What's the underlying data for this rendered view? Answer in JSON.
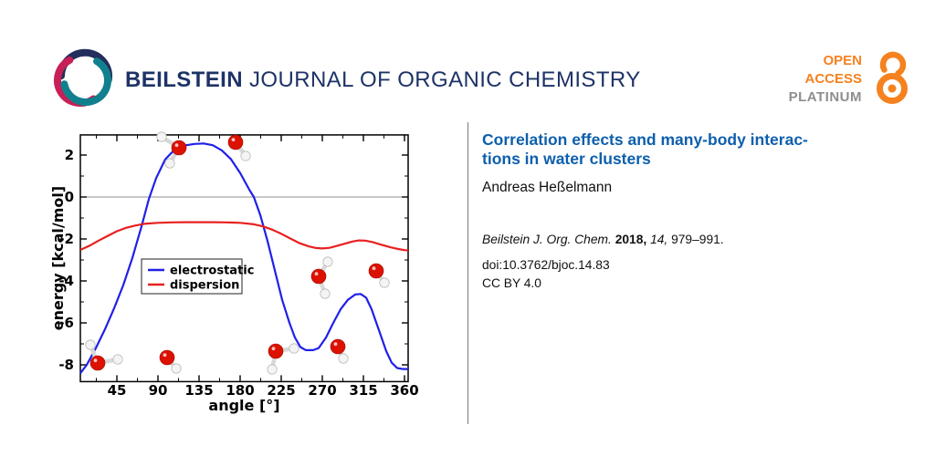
{
  "header": {
    "journal_bold": "BEILSTEIN",
    "journal_rest": " JOURNAL OF ORGANIC CHEMISTRY",
    "open_access": {
      "line1": "OPEN",
      "line2": "ACCESS",
      "line3": "PLATINUM"
    }
  },
  "article": {
    "title_line1": "Correlation effects and many-body interac-",
    "title_line2": "tions in water clusters",
    "author": "Andreas Heßelmann",
    "citation": {
      "journal": "Beilstein J. Org. Chem.",
      "year": " 2018, ",
      "volume": "14, ",
      "pages": "979–991."
    },
    "doi": "doi:10.3762/bjoc.14.83",
    "license": "CC BY 4.0"
  },
  "colors": {
    "journal_navy": "#1e3366",
    "title_blue": "#0d5fad",
    "oa_orange": "#f5821f",
    "oa_gray": "#8e8e8e",
    "logo_navy": "#232e5c",
    "logo_teal": "#11808e",
    "logo_crimson": "#c62057",
    "electrostatic": "#2020e8",
    "dispersion": "#e82020",
    "oxygen": "#dd1100",
    "hydrogen": "#f4f4f4"
  },
  "chart_data": {
    "type": "line",
    "xlabel": "angle [°]",
    "ylabel": "energy [kcal/mol]",
    "xlim": [
      5,
      364
    ],
    "ylim": [
      -8.8,
      2.96
    ],
    "x_ticks": [
      45,
      90,
      135,
      180,
      225,
      270,
      315,
      360
    ],
    "x_minor_ticks": [
      22.5,
      67.5,
      112.5,
      157.5,
      202.5,
      247.5,
      292.5,
      337.5
    ],
    "y_ticks": [
      2,
      0,
      -2,
      -4,
      -6,
      -8
    ],
    "y_minor_ticks": [
      1,
      -1,
      -3,
      -5,
      -7
    ],
    "zero_line": 0,
    "legend": [
      {
        "label": "electrostatic",
        "color": "#2020e8"
      },
      {
        "label": "dispersion",
        "color": "#e82020"
      }
    ],
    "series": [
      {
        "name": "electrostatic",
        "color": "#2020e8",
        "points": [
          [
            5,
            -8.4
          ],
          [
            12,
            -8.0
          ],
          [
            22,
            -7.2
          ],
          [
            32,
            -6.3
          ],
          [
            42,
            -5.3
          ],
          [
            52,
            -4.2
          ],
          [
            62,
            -2.9
          ],
          [
            72,
            -1.4
          ],
          [
            80,
            -0.1
          ],
          [
            88,
            0.9
          ],
          [
            98,
            1.8
          ],
          [
            108,
            2.25
          ],
          [
            118,
            2.45
          ],
          [
            130,
            2.53
          ],
          [
            140,
            2.55
          ],
          [
            150,
            2.47
          ],
          [
            160,
            2.22
          ],
          [
            170,
            1.8
          ],
          [
            180,
            1.15
          ],
          [
            190,
            0.35
          ],
          [
            195,
            0.0
          ],
          [
            202,
            -0.85
          ],
          [
            210,
            -2.1
          ],
          [
            218,
            -3.5
          ],
          [
            226,
            -4.9
          ],
          [
            234,
            -6.0
          ],
          [
            240,
            -6.7
          ],
          [
            246,
            -7.15
          ],
          [
            252,
            -7.3
          ],
          [
            260,
            -7.3
          ],
          [
            266,
            -7.2
          ],
          [
            274,
            -6.7
          ],
          [
            282,
            -6.0
          ],
          [
            290,
            -5.35
          ],
          [
            298,
            -4.9
          ],
          [
            306,
            -4.65
          ],
          [
            312,
            -4.62
          ],
          [
            318,
            -4.8
          ],
          [
            324,
            -5.35
          ],
          [
            332,
            -6.35
          ],
          [
            340,
            -7.35
          ],
          [
            346,
            -7.9
          ],
          [
            352,
            -8.15
          ],
          [
            358,
            -8.2
          ],
          [
            364,
            -8.2
          ]
        ]
      },
      {
        "name": "dispersion",
        "color": "#e82020",
        "points": [
          [
            5,
            -2.52
          ],
          [
            15,
            -2.32
          ],
          [
            25,
            -2.08
          ],
          [
            35,
            -1.85
          ],
          [
            45,
            -1.63
          ],
          [
            55,
            -1.47
          ],
          [
            65,
            -1.36
          ],
          [
            75,
            -1.28
          ],
          [
            90,
            -1.23
          ],
          [
            105,
            -1.21
          ],
          [
            120,
            -1.2
          ],
          [
            135,
            -1.2
          ],
          [
            150,
            -1.2
          ],
          [
            165,
            -1.21
          ],
          [
            180,
            -1.23
          ],
          [
            195,
            -1.3
          ],
          [
            205,
            -1.4
          ],
          [
            215,
            -1.55
          ],
          [
            225,
            -1.75
          ],
          [
            235,
            -1.98
          ],
          [
            245,
            -2.2
          ],
          [
            255,
            -2.35
          ],
          [
            263,
            -2.43
          ],
          [
            270,
            -2.45
          ],
          [
            278,
            -2.42
          ],
          [
            286,
            -2.33
          ],
          [
            295,
            -2.22
          ],
          [
            303,
            -2.12
          ],
          [
            310,
            -2.07
          ],
          [
            317,
            -2.08
          ],
          [
            325,
            -2.15
          ],
          [
            335,
            -2.28
          ],
          [
            345,
            -2.4
          ],
          [
            353,
            -2.48
          ],
          [
            360,
            -2.53
          ],
          [
            364,
            -2.55
          ]
        ]
      }
    ],
    "molecules": [
      {
        "O": [
          196,
          162
        ],
        "H": [
          [
            177,
            150
          ],
          [
            186,
            179
          ]
        ]
      },
      {
        "O": [
          258,
          156
        ],
        "H": [
          [
            269,
            171
          ]
        ]
      },
      {
        "O": [
          349,
          303
        ],
        "H": [
          [
            359,
            287
          ],
          [
            356,
            322
          ]
        ]
      },
      {
        "O": [
          412,
          297
        ],
        "H": [
          [
            421,
            310
          ]
        ]
      },
      {
        "O": [
          107,
          398
        ],
        "H": [
          [
            99,
            378
          ],
          [
            129,
            394
          ]
        ]
      },
      {
        "O": [
          183,
          392
        ],
        "H": [
          [
            193,
            404
          ]
        ]
      },
      {
        "O": [
          302,
          385
        ],
        "H": [
          [
            322,
            382
          ],
          [
            298,
            405
          ]
        ]
      },
      {
        "O": [
          370,
          380
        ],
        "H": [
          [
            376,
            393
          ]
        ]
      }
    ]
  }
}
